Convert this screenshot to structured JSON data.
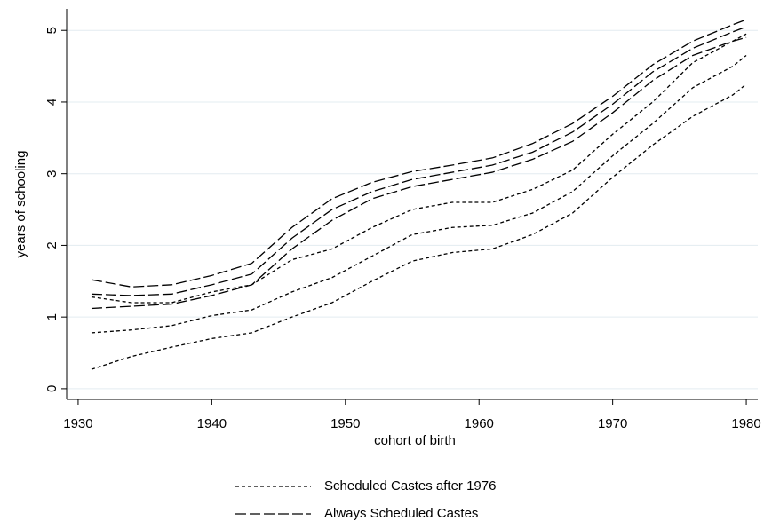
{
  "chart_data": {
    "type": "line",
    "x_label": "cohort of birth",
    "y_label": "years of schooling",
    "xlim": [
      1929.14,
      1980.86
    ],
    "ylim": [
      -0.15,
      5.3
    ],
    "xticks": [
      1930,
      1940,
      1950,
      1960,
      1970,
      1980
    ],
    "yticks": [
      0,
      1,
      2,
      3,
      4,
      5
    ],
    "grid": true,
    "legend": "bottom",
    "x": [
      1931,
      1934,
      1937,
      1940,
      1943,
      1946,
      1949,
      1952,
      1955,
      1958,
      1961,
      1964,
      1967,
      1970,
      1973,
      1976,
      1979,
      1980
    ],
    "series": [
      {
        "name": "Scheduled Castes after 1976",
        "color": "#000000",
        "dash": "short",
        "values": [
          0.78,
          0.82,
          0.88,
          1.02,
          1.1,
          1.35,
          1.55,
          1.85,
          2.15,
          2.25,
          2.28,
          2.45,
          2.75,
          3.25,
          3.7,
          4.2,
          4.5,
          4.65
        ],
        "lower": [
          0.27,
          0.45,
          0.58,
          0.7,
          0.78,
          1.0,
          1.2,
          1.5,
          1.78,
          1.9,
          1.95,
          2.15,
          2.45,
          2.95,
          3.4,
          3.8,
          4.1,
          4.25
        ],
        "upper": [
          1.28,
          1.2,
          1.2,
          1.35,
          1.45,
          1.8,
          1.95,
          2.25,
          2.5,
          2.6,
          2.6,
          2.78,
          3.05,
          3.55,
          4.0,
          4.55,
          4.85,
          4.95
        ]
      },
      {
        "name": "Always Scheduled Castes",
        "color": "#000000",
        "dash": "long",
        "values": [
          1.32,
          1.3,
          1.32,
          1.45,
          1.6,
          2.1,
          2.5,
          2.75,
          2.92,
          3.02,
          3.12,
          3.3,
          3.58,
          3.97,
          4.42,
          4.75,
          4.98,
          5.05
        ],
        "lower": [
          1.12,
          1.15,
          1.18,
          1.3,
          1.45,
          1.95,
          2.35,
          2.65,
          2.82,
          2.92,
          3.02,
          3.2,
          3.45,
          3.85,
          4.3,
          4.65,
          4.85,
          4.9
        ],
        "upper": [
          1.52,
          1.42,
          1.45,
          1.58,
          1.75,
          2.25,
          2.65,
          2.88,
          3.03,
          3.12,
          3.22,
          3.42,
          3.7,
          4.08,
          4.52,
          4.85,
          5.08,
          5.15
        ]
      }
    ]
  }
}
